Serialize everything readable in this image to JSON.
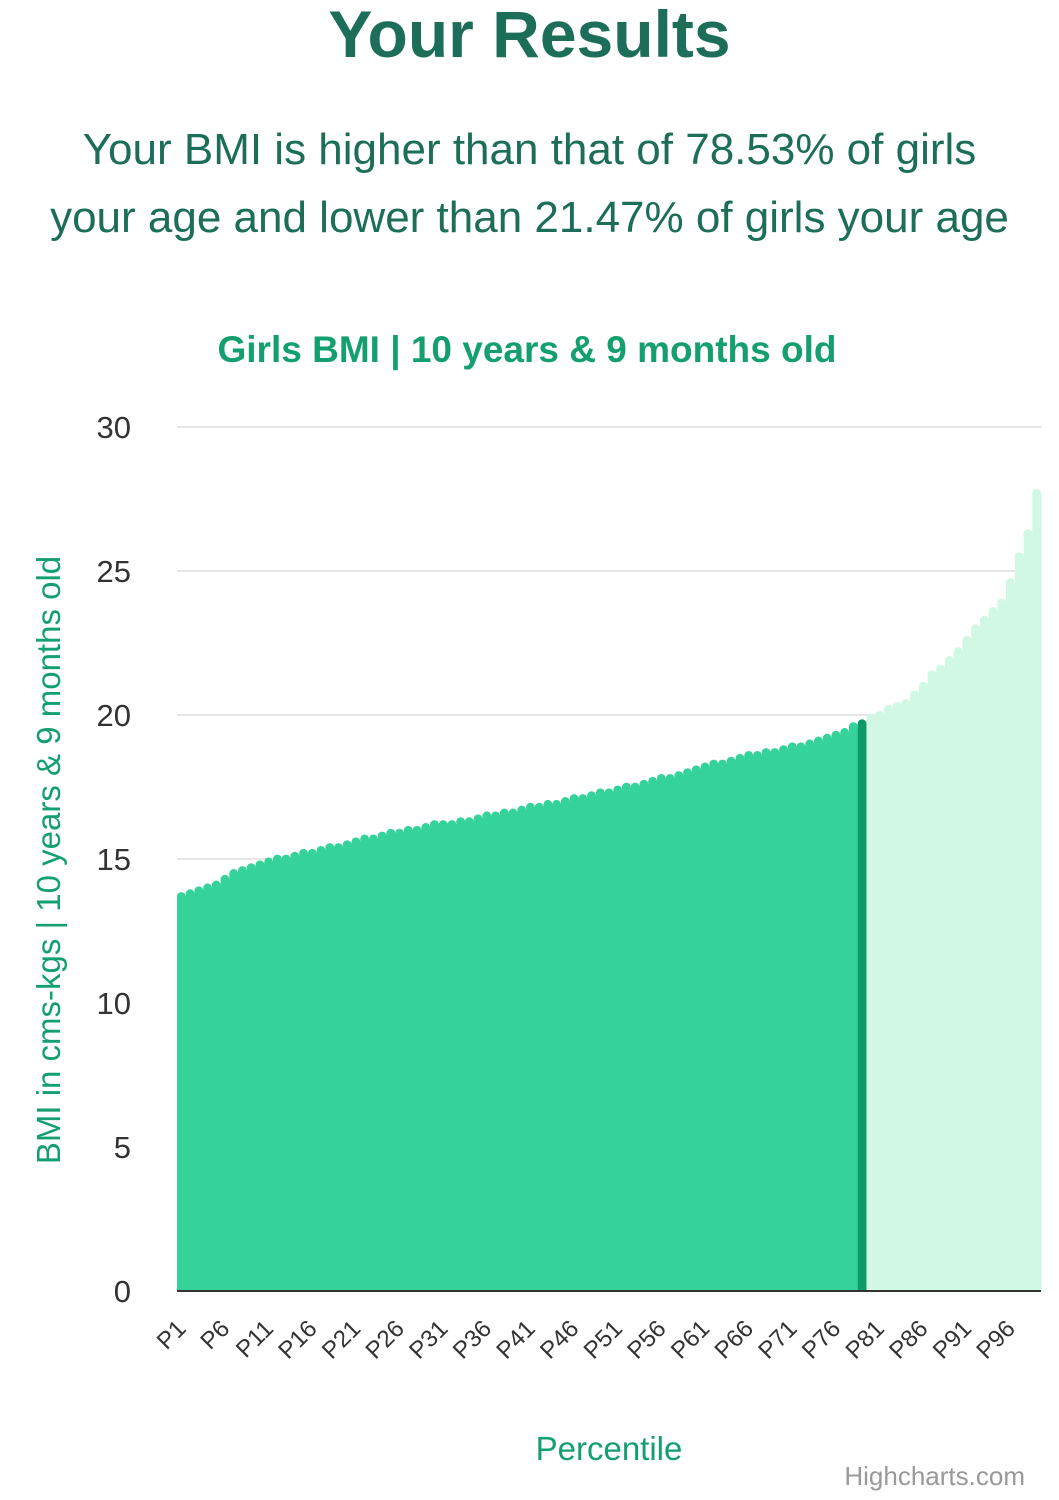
{
  "header": {
    "title": "Your Results",
    "summary_line1": "Your BMI is higher than that of 78.53% of girls",
    "summary_line2": "your age and lower than 21.47% of girls your age"
  },
  "chart_data": {
    "type": "bar",
    "title": "Girls BMI | 10 years & 9 months old",
    "xlabel": "Percentile",
    "ylabel": "BMI in cms-kgs | 10 years & 9 months old",
    "ylim": [
      0,
      30
    ],
    "yticks": [
      "0",
      "5",
      "10",
      "15",
      "20",
      "25",
      "30"
    ],
    "grid": true,
    "credits": "Highcharts.com",
    "highlight_index": 78,
    "colors": {
      "filled": "#35d399",
      "highlight": "#0e9968",
      "rest": "#d1f8e5",
      "title": "#14a06e",
      "axis_title": "#14a06e"
    },
    "categories": [
      "P1",
      "P2",
      "P3",
      "P4",
      "P5",
      "P6",
      "P7",
      "P8",
      "P9",
      "P10",
      "P11",
      "P12",
      "P13",
      "P14",
      "P15",
      "P16",
      "P17",
      "P18",
      "P19",
      "P20",
      "P21",
      "P22",
      "P23",
      "P24",
      "P25",
      "P26",
      "P27",
      "P28",
      "P29",
      "P30",
      "P31",
      "P32",
      "P33",
      "P34",
      "P35",
      "P36",
      "P37",
      "P38",
      "P39",
      "P40",
      "P41",
      "P42",
      "P43",
      "P44",
      "P45",
      "P46",
      "P47",
      "P48",
      "P49",
      "P50",
      "P51",
      "P52",
      "P53",
      "P54",
      "P55",
      "P56",
      "P57",
      "P58",
      "P59",
      "P60",
      "P61",
      "P62",
      "P63",
      "P64",
      "P65",
      "P66",
      "P67",
      "P68",
      "P69",
      "P70",
      "P71",
      "P72",
      "P73",
      "P74",
      "P75",
      "P76",
      "P77",
      "P78",
      "P79",
      "P80",
      "P81",
      "P82",
      "P83",
      "P84",
      "P85",
      "P86",
      "P87",
      "P88",
      "P89",
      "P90",
      "P91",
      "P92",
      "P93",
      "P94",
      "P95",
      "P96",
      "P97",
      "P98",
      "P99"
    ],
    "tick_labels": [
      "P1",
      "P6",
      "P11",
      "P16",
      "P21",
      "P26",
      "P31",
      "P36",
      "P41",
      "P46",
      "P51",
      "P56",
      "P61",
      "P66",
      "P71",
      "P76",
      "P81",
      "P86",
      "P91",
      "P96"
    ],
    "values": [
      13.7,
      13.8,
      13.9,
      14.0,
      14.1,
      14.3,
      14.5,
      14.6,
      14.7,
      14.8,
      14.9,
      15.0,
      15.0,
      15.1,
      15.2,
      15.2,
      15.3,
      15.4,
      15.4,
      15.5,
      15.6,
      15.7,
      15.7,
      15.8,
      15.9,
      15.9,
      16.0,
      16.0,
      16.1,
      16.2,
      16.2,
      16.2,
      16.3,
      16.3,
      16.4,
      16.5,
      16.5,
      16.6,
      16.6,
      16.7,
      16.8,
      16.8,
      16.9,
      16.9,
      17.0,
      17.1,
      17.1,
      17.2,
      17.3,
      17.3,
      17.4,
      17.5,
      17.5,
      17.6,
      17.7,
      17.8,
      17.8,
      17.9,
      18.0,
      18.1,
      18.2,
      18.3,
      18.3,
      18.4,
      18.5,
      18.6,
      18.6,
      18.7,
      18.7,
      18.8,
      18.9,
      18.9,
      19.0,
      19.1,
      19.2,
      19.3,
      19.4,
      19.6,
      19.7,
      19.9,
      20.0,
      20.2,
      20.3,
      20.4,
      20.7,
      21.0,
      21.4,
      21.6,
      21.9,
      22.2,
      22.6,
      23.0,
      23.3,
      23.6,
      23.9,
      24.6,
      25.5,
      26.3,
      27.7
    ]
  }
}
